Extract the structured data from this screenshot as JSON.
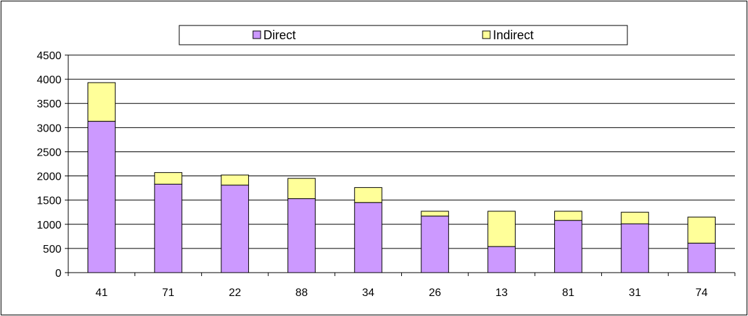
{
  "chart_data": {
    "type": "bar",
    "stacked": true,
    "title": "",
    "xlabel": "",
    "ylabel": "",
    "categories": [
      "41",
      "71",
      "22",
      "88",
      "34",
      "26",
      "13",
      "81",
      "31",
      "74"
    ],
    "series": [
      {
        "name": "Direct",
        "color": "#cc99ff",
        "values": [
          3130,
          1830,
          1810,
          1530,
          1450,
          1170,
          540,
          1080,
          1010,
          610
        ]
      },
      {
        "name": "Indirect",
        "color": "#ffff99",
        "values": [
          800,
          240,
          210,
          420,
          310,
          100,
          730,
          190,
          240,
          540
        ]
      }
    ],
    "ylim": [
      0,
      4500
    ],
    "yticks": [
      0,
      500,
      1000,
      1500,
      2000,
      2500,
      3000,
      3500,
      4000,
      4500
    ],
    "grid": true,
    "legend_position": "top"
  }
}
